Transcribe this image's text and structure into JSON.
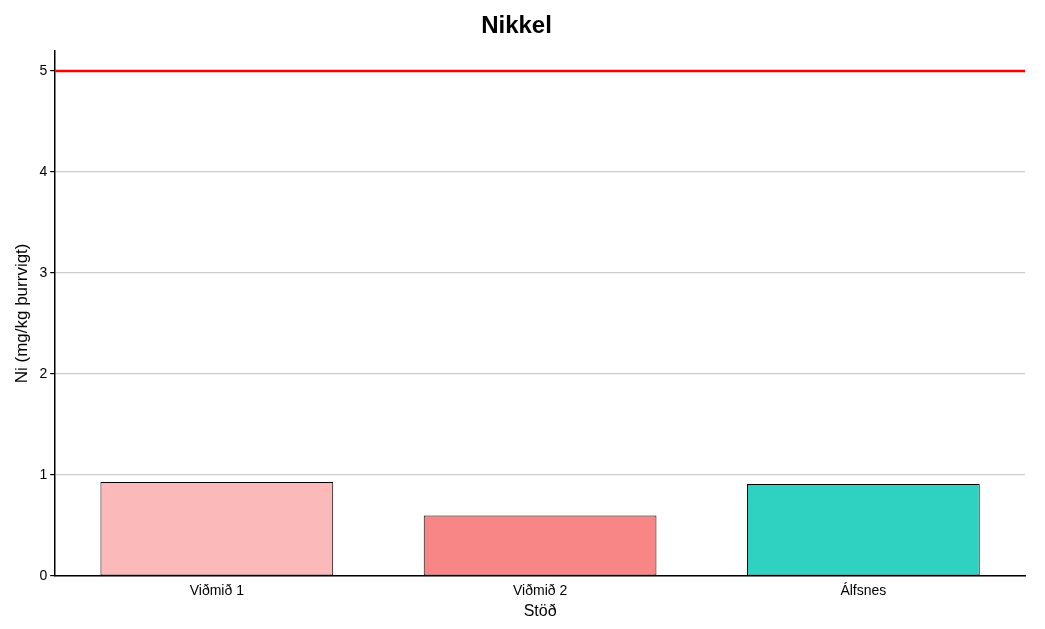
{
  "chart_data": {
    "type": "bar",
    "title": "Nikkel",
    "xlabel": "Stöð",
    "ylabel": "Ni (mg/kg þurrvigt)",
    "categories": [
      "Viðmið 1",
      "Viðmið 2",
      "Álfsnes"
    ],
    "values": [
      0.93,
      0.6,
      0.91
    ],
    "colors": [
      "#fbb9b9",
      "#f98686",
      "#2fd1c1"
    ],
    "ylim": [
      0,
      5.2
    ],
    "yticks": [
      0,
      1,
      2,
      3,
      4,
      5
    ],
    "grid": "y",
    "ref_lines": [
      {
        "axis": "y",
        "value": 5,
        "color": "#ff0000"
      }
    ]
  }
}
